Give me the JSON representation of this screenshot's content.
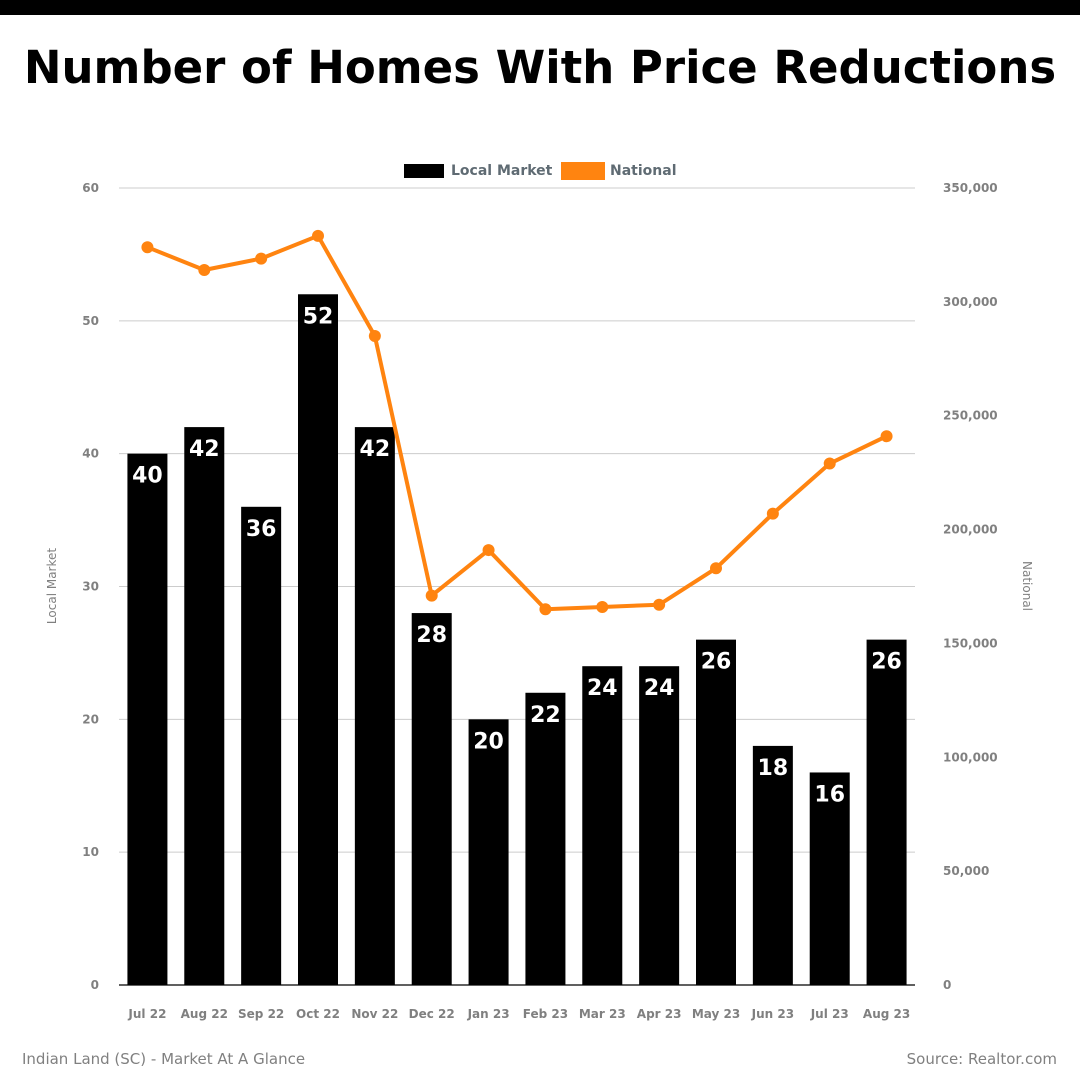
{
  "title": "Number of Homes With Price Reductions",
  "footer": {
    "left": "Indian Land (SC) - Market At A Glance",
    "right": "Source: Realtor.com"
  },
  "colors": {
    "local": "#000000",
    "national": "#ff8410",
    "grid": "#cccccc",
    "tick_text": "#808080",
    "legend_text": "#5f6b73"
  },
  "chart_data": {
    "type": "bar",
    "categories": [
      "Jul 22",
      "Aug 22",
      "Sep 22",
      "Oct 22",
      "Nov 22",
      "Dec 22",
      "Jan 23",
      "Feb 23",
      "Mar 23",
      "Apr 23",
      "May 23",
      "Jun 23",
      "Jul 23",
      "Aug 23"
    ],
    "series": [
      {
        "name": "Local Market",
        "type": "bar",
        "axis": "left",
        "values": [
          40,
          42,
          36,
          52,
          42,
          28,
          20,
          22,
          24,
          24,
          26,
          18,
          16,
          26
        ],
        "labels": [
          "40",
          "42",
          "36",
          "52",
          "42",
          "28",
          "20",
          "22",
          "24",
          "24",
          "26",
          "18",
          "16",
          "26"
        ]
      },
      {
        "name": "National",
        "type": "line",
        "axis": "right",
        "values": [
          324000,
          314000,
          319000,
          329000,
          285000,
          171000,
          191000,
          165000,
          166000,
          167000,
          183000,
          207000,
          229000,
          241000
        ]
      }
    ],
    "ylabel": "Local Market",
    "ylabel_right": "National",
    "ylim": [
      0,
      60
    ],
    "ylim_right": [
      0,
      350000
    ],
    "yticks": [
      "0",
      "10",
      "20",
      "30",
      "40",
      "50",
      "60"
    ],
    "yticks_right": [
      "0",
      "50,000",
      "100,000",
      "150,000",
      "200,000",
      "250,000",
      "300,000",
      "350,000"
    ],
    "legend": "top-center",
    "grid": true
  }
}
